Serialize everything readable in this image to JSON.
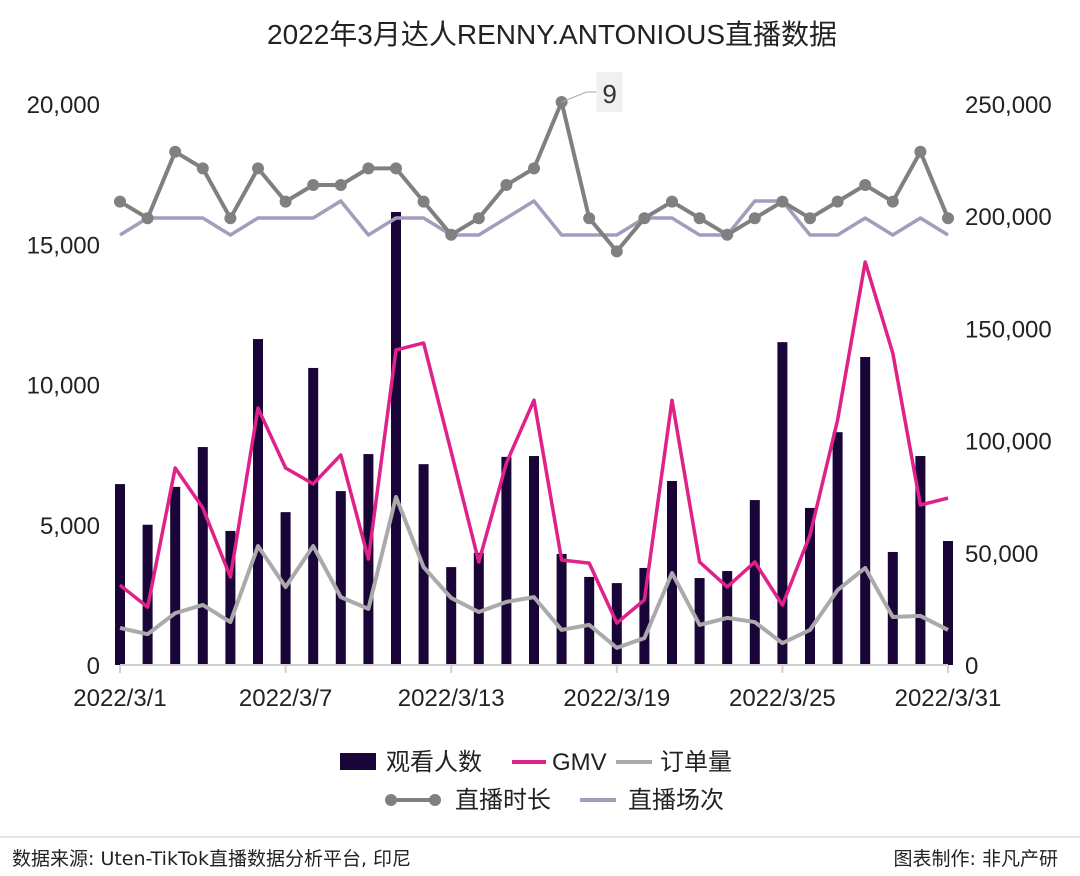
{
  "chart_data": {
    "type": "bar+line",
    "title": "2022年3月达人RENNY.ANTONIOUS直播数据",
    "x": [
      "2022/3/1",
      "2022/3/2",
      "2022/3/3",
      "2022/3/4",
      "2022/3/5",
      "2022/3/6",
      "2022/3/7",
      "2022/3/8",
      "2022/3/9",
      "2022/3/10",
      "2022/3/11",
      "2022/3/12",
      "2022/3/13",
      "2022/3/14",
      "2022/3/15",
      "2022/3/16",
      "2022/3/17",
      "2022/3/18",
      "2022/3/19",
      "2022/3/20",
      "2022/3/21",
      "2022/3/22",
      "2022/3/23",
      "2022/3/24",
      "2022/3/25",
      "2022/3/26",
      "2022/3/27",
      "2022/3/28",
      "2022/3/29",
      "2022/3/30",
      "2022/3/31"
    ],
    "x_tick_labels": [
      "2022/3/1",
      "2022/3/7",
      "2022/3/13",
      "2022/3/19",
      "2022/3/25",
      "2022/3/31"
    ],
    "left_axis": {
      "ylim": [
        0,
        20000
      ],
      "ticks": [
        "0",
        "5,000",
        "10,000",
        "15,000",
        "20,000"
      ]
    },
    "right_axis": {
      "ylim": [
        0,
        250000
      ],
      "ticks": [
        "0",
        "50,000",
        "100,000",
        "150,000",
        "200,000",
        "250,000"
      ]
    },
    "grid": false,
    "legend_placement": "bottom",
    "series": [
      {
        "name": "观看人数",
        "type": "bar",
        "axis": "left",
        "color": "#1a0538",
        "values": [
          6450,
          5000,
          6350,
          7770,
          4780,
          11620,
          5450,
          10590,
          6200,
          7520,
          16150,
          7160,
          3490,
          4000,
          7420,
          7450,
          3960,
          3140,
          2920,
          3460,
          6560,
          3100,
          3350,
          5880,
          11510,
          5600,
          8300,
          10980,
          4030,
          7450,
          4420
        ]
      },
      {
        "name": "GMV",
        "type": "line",
        "axis": "right",
        "color": "#e0218a",
        "values": [
          35600,
          25800,
          87800,
          70000,
          39200,
          114500,
          87800,
          80700,
          93600,
          47200,
          140400,
          143500,
          95000,
          45900,
          90000,
          118000,
          46800,
          45400,
          18700,
          29000,
          118000,
          45900,
          34800,
          45900,
          26700,
          57900,
          109200,
          179600,
          139000,
          71300,
          74400
        ]
      },
      {
        "name": "订单量",
        "type": "line",
        "axis": "left",
        "color": "#aaaaaa",
        "values": [
          1320,
          1100,
          1850,
          2140,
          1530,
          4240,
          2780,
          4240,
          2420,
          2000,
          5990,
          3490,
          2390,
          1890,
          2250,
          2420,
          1250,
          1430,
          610,
          960,
          3280,
          1430,
          1680,
          1530,
          780,
          1250,
          2670,
          3460,
          1710,
          1750,
          1250
        ]
      },
      {
        "name": "直播时长",
        "type": "line-marker",
        "axis": "hidden",
        "color": "#808080",
        "values": [
          6,
          5.5,
          7.5,
          7,
          5.5,
          7,
          6,
          6.5,
          6.5,
          7,
          7,
          6,
          5,
          5.5,
          6.5,
          7,
          9,
          5.5,
          4.5,
          5.5,
          6,
          5.5,
          5,
          5.5,
          6,
          5.5,
          6,
          6.5,
          6,
          7.5,
          5.5
        ],
        "annotations": [
          {
            "x": "2022/3/17",
            "label": "9"
          }
        ]
      },
      {
        "name": "直播场次",
        "type": "line",
        "axis": "hidden",
        "color": "#a69bbd",
        "values": [
          1,
          2,
          2,
          2,
          1,
          2,
          2,
          2,
          3,
          1,
          2,
          2,
          1,
          1,
          2,
          3,
          1,
          1,
          1,
          2,
          2,
          1,
          1,
          3,
          3,
          1,
          1,
          2,
          1,
          2,
          1
        ]
      }
    ]
  },
  "footer": {
    "source": "数据来源: Uten-TikTok直播数据分析平台, 印尼",
    "credit": "图表制作: 非凡产研"
  }
}
